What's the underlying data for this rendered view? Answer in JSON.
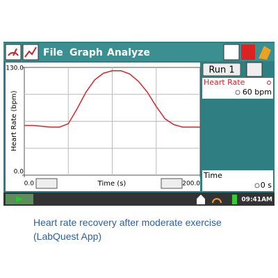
{
  "toolbar": {
    "menus": [
      "File",
      "Graph",
      "Analyze"
    ]
  },
  "chart_data": {
    "type": "line",
    "x_label": "Time (s)",
    "y_label": "Heart Rate (bpm)",
    "x": [
      0,
      10,
      20,
      30,
      40,
      50,
      60,
      70,
      80,
      90,
      100,
      110,
      120,
      130,
      140,
      150,
      160,
      170,
      180,
      190,
      200
    ],
    "series": [
      {
        "name": "Heart Rate",
        "color": "#e0202a",
        "values": [
          60,
          60,
          59,
          58,
          58,
          62,
          80,
          100,
          115,
          123,
          126,
          126,
          122,
          113,
          100,
          83,
          68,
          61,
          58,
          58,
          58
        ]
      }
    ],
    "xlim": [
      0,
      200
    ],
    "ylim": [
      0,
      130
    ],
    "xticks": [
      {
        "value": 0,
        "label": "0.0"
      },
      {
        "value": 200,
        "label": "200.0"
      }
    ],
    "yticks": [
      {
        "value": 0,
        "label": "0.0"
      },
      {
        "value": 130,
        "label": "130.0"
      }
    ],
    "xgrid": [
      50,
      100,
      150
    ],
    "ygrid": [
      32.5,
      65,
      97.5
    ]
  },
  "side_panel": {
    "run": "Run 1",
    "sensor": "Heart Rate",
    "reading": "60 bpm",
    "time_label": "Time",
    "time_reading": "0 s"
  },
  "status": {
    "clock": "09:41AM"
  },
  "caption": [
    "Heart rate recovery after moderate exercise",
    "(LabQuest App)"
  ]
}
